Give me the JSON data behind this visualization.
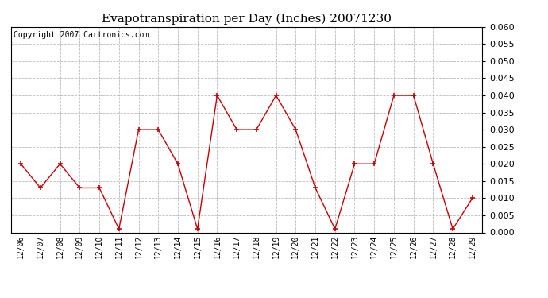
{
  "title": "Evapotranspiration per Day (Inches) 20071230",
  "copyright_text": "Copyright 2007 Cartronics.com",
  "x_labels": [
    "12/06",
    "12/07",
    "12/08",
    "12/09",
    "12/10",
    "12/11",
    "12/12",
    "12/13",
    "12/14",
    "12/15",
    "12/16",
    "12/17",
    "12/18",
    "12/19",
    "12/20",
    "12/21",
    "12/22",
    "12/23",
    "12/24",
    "12/25",
    "12/26",
    "12/27",
    "12/28",
    "12/29"
  ],
  "y_values": [
    0.02,
    0.013,
    0.02,
    0.013,
    0.013,
    0.001,
    0.03,
    0.03,
    0.02,
    0.001,
    0.04,
    0.03,
    0.03,
    0.04,
    0.03,
    0.013,
    0.001,
    0.02,
    0.02,
    0.04,
    0.04,
    0.02,
    0.001,
    0.01
  ],
  "line_color": "#cc0000",
  "marker": "+",
  "marker_size": 5,
  "marker_color": "#cc0000",
  "ylim": [
    0.0,
    0.06
  ],
  "yticks": [
    0.0,
    0.005,
    0.01,
    0.015,
    0.02,
    0.025,
    0.03,
    0.035,
    0.04,
    0.045,
    0.05,
    0.055,
    0.06
  ],
  "background_color": "#ffffff",
  "grid_color": "#bbbbbb",
  "title_fontsize": 11,
  "copyright_fontsize": 7,
  "tick_fontsize": 8,
  "xtick_fontsize": 7
}
